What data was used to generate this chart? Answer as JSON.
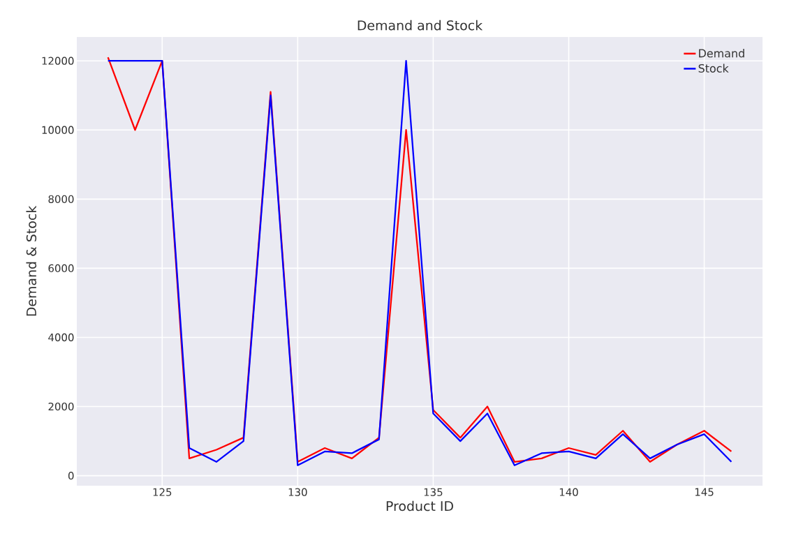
{
  "chart_data": {
    "type": "line",
    "title": "Demand and Stock",
    "xlabel": "Product ID",
    "ylabel": "Demand & Stock",
    "x": [
      123,
      124,
      125,
      126,
      127,
      128,
      129,
      130,
      131,
      132,
      133,
      134,
      135,
      136,
      137,
      138,
      139,
      140,
      141,
      142,
      143,
      144,
      145,
      146
    ],
    "series": [
      {
        "name": "Demand",
        "color": "#ff0000",
        "values": [
          12100,
          10000,
          12000,
          500,
          750,
          1100,
          11100,
          400,
          800,
          500,
          1100,
          10000,
          1900,
          1100,
          2000,
          400,
          500,
          800,
          600,
          1300,
          400,
          900,
          1300,
          700
        ]
      },
      {
        "name": "Stock",
        "color": "#0000ff",
        "values": [
          12000,
          12000,
          12000,
          800,
          400,
          1000,
          11000,
          300,
          700,
          650,
          1050,
          12000,
          1800,
          1000,
          1800,
          300,
          650,
          700,
          500,
          1200,
          500,
          900,
          1200,
          400
        ]
      }
    ],
    "xlim": [
      121.85,
      147.15
    ],
    "ylim": [
      -290,
      12690
    ],
    "xticks": [
      125,
      130,
      135,
      140,
      145
    ],
    "yticks": [
      0,
      2000,
      4000,
      6000,
      8000,
      10000,
      12000
    ],
    "grid": true,
    "legend": "top right",
    "marker": "none",
    "line_style": "solid"
  }
}
